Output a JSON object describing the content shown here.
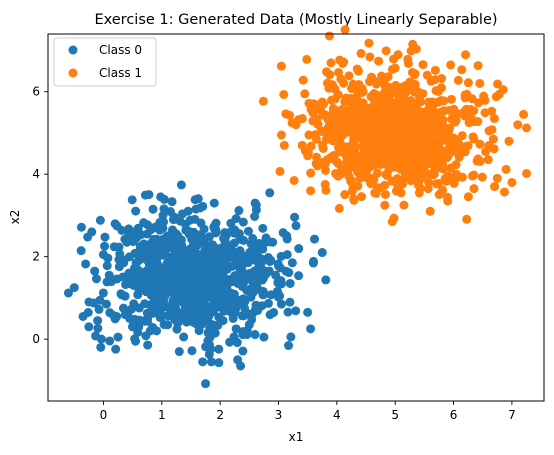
{
  "chart_data": {
    "type": "scatter",
    "title": "Exercise 1: Generated Data (Mostly Linearly Separable)",
    "xlabel": "x1",
    "ylabel": "x2",
    "xlim": [
      -0.95,
      7.55
    ],
    "ylim": [
      -1.5,
      7.4
    ],
    "x_ticks": [
      0,
      1,
      2,
      3,
      4,
      5,
      6,
      7
    ],
    "y_ticks": [
      0,
      2,
      4,
      6
    ],
    "grid": false,
    "legend_position": "top-left",
    "series": [
      {
        "name": "Class 0",
        "color": "#1f77b4",
        "center": [
          1.5,
          1.5
        ],
        "approx_count": 1000,
        "points": [
          [
            -0.6,
            1.12
          ],
          [
            -0.5,
            1.25
          ],
          [
            -0.35,
            0.55
          ],
          [
            -0.25,
            0.3
          ],
          [
            -0.2,
            2.6
          ],
          [
            -0.15,
            1.65
          ],
          [
            -0.1,
            0.45
          ],
          [
            0.0,
            2.05
          ],
          [
            0.05,
            0.85
          ],
          [
            0.1,
            1.55
          ],
          [
            0.2,
            2.8
          ],
          [
            0.25,
            0.05
          ],
          [
            0.3,
            1.1
          ],
          [
            0.4,
            2.35
          ],
          [
            0.45,
            0.5
          ],
          [
            0.55,
            -0.05
          ],
          [
            0.6,
            1.9
          ],
          [
            0.75,
            2.55
          ],
          [
            0.8,
            0.2
          ],
          [
            0.85,
            3.15
          ],
          [
            0.95,
            1.2
          ],
          [
            0.98,
            3.45
          ],
          [
            1.1,
            0.35
          ],
          [
            1.2,
            2.9
          ],
          [
            1.3,
            -0.3
          ],
          [
            1.45,
            3.1
          ],
          [
            1.6,
            0.75
          ],
          [
            1.7,
            -0.55
          ],
          [
            1.75,
            -1.08
          ],
          [
            1.85,
            -0.55
          ],
          [
            1.9,
            3.3
          ],
          [
            2.05,
            0.45
          ],
          [
            2.25,
            2.65
          ],
          [
            2.3,
            -0.5
          ],
          [
            2.35,
            -0.65
          ],
          [
            2.45,
            1.2
          ],
          [
            2.5,
            0.35
          ],
          [
            2.6,
            3.3
          ],
          [
            2.7,
            1.95
          ],
          [
            2.75,
            0.05
          ],
          [
            2.85,
            3.55
          ],
          [
            2.9,
            2.35
          ],
          [
            2.95,
            1.55
          ],
          [
            3.05,
            0.85
          ],
          [
            3.15,
            2.05
          ],
          [
            3.2,
            1.35
          ],
          [
            3.3,
            2.75
          ],
          [
            3.5,
            0.65
          ],
          [
            3.55,
            0.25
          ],
          [
            3.75,
            2.1
          ]
        ]
      },
      {
        "name": "Class 1",
        "color": "#ff7f0e",
        "center": [
          5.0,
          5.0
        ],
        "approx_count": 1000,
        "points": [
          [
            3.05,
            4.95
          ],
          [
            3.1,
            4.7
          ],
          [
            3.3,
            5.2
          ],
          [
            3.45,
            5.95
          ],
          [
            3.5,
            4.45
          ],
          [
            3.55,
            3.6
          ],
          [
            3.65,
            4.85
          ],
          [
            3.75,
            5.75
          ],
          [
            3.8,
            3.75
          ],
          [
            3.9,
            6.7
          ],
          [
            4.0,
            4.3
          ],
          [
            4.15,
            5.5
          ],
          [
            4.25,
            3.85
          ],
          [
            4.35,
            6.55
          ],
          [
            4.5,
            4.1
          ],
          [
            4.55,
            7.18
          ],
          [
            4.65,
            3.55
          ],
          [
            4.8,
            5.9
          ],
          [
            4.95,
            2.85
          ],
          [
            5.05,
            6.9
          ],
          [
            5.15,
            3.25
          ],
          [
            5.3,
            7.15
          ],
          [
            5.4,
            4.4
          ],
          [
            5.55,
            6.4
          ],
          [
            5.6,
            3.1
          ],
          [
            5.75,
            5.75
          ],
          [
            5.9,
            3.35
          ],
          [
            5.95,
            6.65
          ],
          [
            6.05,
            4.0
          ],
          [
            6.2,
            5.85
          ],
          [
            6.35,
            3.65
          ],
          [
            6.45,
            6.2
          ],
          [
            6.55,
            4.55
          ],
          [
            6.7,
            5.35
          ],
          [
            6.75,
            3.9
          ],
          [
            6.85,
            6.05
          ],
          [
            6.95,
            4.8
          ],
          [
            7.0,
            3.8
          ],
          [
            7.1,
            5.2
          ],
          [
            7.2,
            5.45
          ],
          [
            4.45,
            6.0
          ],
          [
            4.7,
            4.65
          ],
          [
            5.2,
            5.35
          ],
          [
            5.5,
            4.85
          ],
          [
            5.8,
            5.05
          ],
          [
            4.3,
            5.05
          ],
          [
            5.35,
            5.6
          ],
          [
            6.1,
            4.7
          ],
          [
            4.85,
            4.25
          ],
          [
            5.65,
            5.25
          ]
        ]
      }
    ]
  }
}
